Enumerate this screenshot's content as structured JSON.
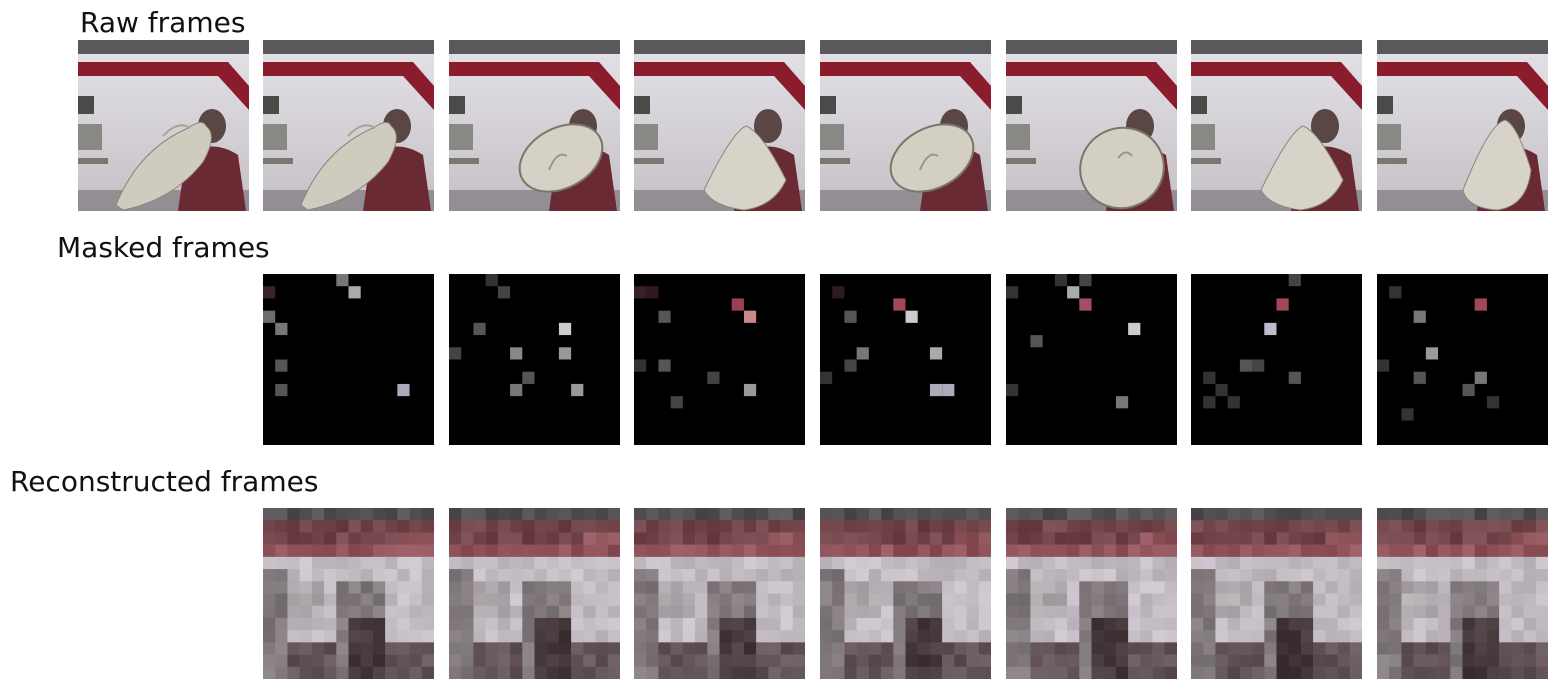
{
  "figure": {
    "rows": [
      {
        "id": "raw",
        "title": "Raw frames",
        "frame_count": 8
      },
      {
        "id": "masked",
        "title": "Masked frames",
        "frame_count": 7
      },
      {
        "id": "recon",
        "title": "Reconstructed frames",
        "frame_count": 7
      }
    ],
    "raw_frames": [
      {
        "hat_shape": "tilted-side",
        "hat_color": "#cfcbbf"
      },
      {
        "hat_shape": "tilted-side",
        "hat_color": "#cfcbbf"
      },
      {
        "hat_shape": "tilted-disc",
        "hat_color": "#d6d1c6"
      },
      {
        "hat_shape": "cone-front",
        "hat_color": "#d8d3c8"
      },
      {
        "hat_shape": "tilted-disc",
        "hat_color": "#d4cfc3"
      },
      {
        "hat_shape": "disc-front",
        "hat_color": "#d4cfc3"
      },
      {
        "hat_shape": "cone-front",
        "hat_color": "#d8d3c8"
      },
      {
        "hat_shape": "cone-right",
        "hat_color": "#d8d3c8"
      }
    ],
    "masked_frames": [
      {
        "visible_patches": [
          [
            6,
            0,
            "#777"
          ],
          [
            7,
            1,
            "#aaa"
          ],
          [
            0,
            1,
            "#3a2228"
          ],
          [
            0,
            3,
            "#6c6c6c"
          ],
          [
            1,
            4,
            "#777"
          ],
          [
            1,
            7,
            "#555"
          ],
          [
            1,
            9,
            "#555"
          ],
          [
            11,
            9,
            "#aab"
          ]
        ]
      },
      {
        "visible_patches": [
          [
            3,
            0,
            "#333"
          ],
          [
            4,
            1,
            "#444"
          ],
          [
            2,
            4,
            "#555"
          ],
          [
            9,
            4,
            "#ccc"
          ],
          [
            0,
            6,
            "#444"
          ],
          [
            5,
            6,
            "#888"
          ],
          [
            9,
            6,
            "#999"
          ],
          [
            6,
            8,
            "#555"
          ],
          [
            5,
            9,
            "#777"
          ],
          [
            10,
            9,
            "#999"
          ]
        ]
      },
      {
        "visible_patches": [
          [
            0,
            1,
            "#3a2025"
          ],
          [
            1,
            1,
            "#301a1f"
          ],
          [
            8,
            2,
            "#9a4050"
          ],
          [
            2,
            3,
            "#555"
          ],
          [
            9,
            3,
            "#c88"
          ],
          [
            0,
            7,
            "#333"
          ],
          [
            2,
            7,
            "#555"
          ],
          [
            6,
            8,
            "#444"
          ],
          [
            9,
            9,
            "#999"
          ],
          [
            3,
            10,
            "#444"
          ]
        ]
      },
      {
        "visible_patches": [
          [
            1,
            1,
            "#2e1a1f"
          ],
          [
            6,
            2,
            "#a04858"
          ],
          [
            2,
            3,
            "#555"
          ],
          [
            7,
            3,
            "#ccc"
          ],
          [
            3,
            6,
            "#777"
          ],
          [
            9,
            6,
            "#aaa"
          ],
          [
            2,
            7,
            "#444"
          ],
          [
            0,
            8,
            "#333"
          ],
          [
            9,
            9,
            "#aab"
          ],
          [
            10,
            9,
            "#aab"
          ]
        ]
      },
      {
        "visible_patches": [
          [
            4,
            0,
            "#333"
          ],
          [
            6,
            0,
            "#444"
          ],
          [
            5,
            1,
            "#aaa"
          ],
          [
            0,
            1,
            "#333"
          ],
          [
            6,
            2,
            "#a05060"
          ],
          [
            10,
            4,
            "#ccc"
          ],
          [
            2,
            5,
            "#555"
          ],
          [
            0,
            9,
            "#333"
          ],
          [
            9,
            10,
            "#777"
          ]
        ]
      },
      {
        "visible_patches": [
          [
            8,
            0,
            "#444"
          ],
          [
            7,
            2,
            "#a04858"
          ],
          [
            6,
            4,
            "#bbc"
          ],
          [
            5,
            7,
            "#444"
          ],
          [
            4,
            7,
            "#555"
          ],
          [
            1,
            8,
            "#333"
          ],
          [
            2,
            9,
            "#333"
          ],
          [
            1,
            10,
            "#333"
          ],
          [
            3,
            10,
            "#333"
          ],
          [
            8,
            8,
            "#555"
          ]
        ]
      },
      {
        "visible_patches": [
          [
            1,
            1,
            "#333"
          ],
          [
            8,
            2,
            "#a04858"
          ],
          [
            3,
            3,
            "#777"
          ],
          [
            4,
            6,
            "#999"
          ],
          [
            0,
            7,
            "#333"
          ],
          [
            3,
            8,
            "#555"
          ],
          [
            8,
            8,
            "#777"
          ],
          [
            7,
            9,
            "#555"
          ],
          [
            2,
            11,
            "#333"
          ],
          [
            9,
            10,
            "#333"
          ]
        ]
      }
    ],
    "recon_frames": [
      {
        "palette": [
          "#4a4548",
          "#6a3a40",
          "#8a4a52",
          "#c0b8c0",
          "#aaa3a8",
          "#7a7275",
          "#5a4a4f",
          "#3a2d30"
        ]
      },
      {
        "palette": [
          "#4a4548",
          "#6a3a40",
          "#8a4a52",
          "#c0b8c0",
          "#aaa3a8",
          "#7a7275",
          "#5a4a4f",
          "#3a2d30"
        ]
      },
      {
        "palette": [
          "#4a4548",
          "#6a3a40",
          "#8a4a52",
          "#c0b8c0",
          "#aaa3a8",
          "#7a7275",
          "#5a4a4f",
          "#3a2d30"
        ]
      },
      {
        "palette": [
          "#4a4548",
          "#6a3a40",
          "#8a4a52",
          "#c0b8c0",
          "#aaa3a8",
          "#7a7275",
          "#5a4a4f",
          "#3a2d30"
        ]
      },
      {
        "palette": [
          "#4a4548",
          "#6a3a40",
          "#8a4a52",
          "#c0b8c0",
          "#aaa3a8",
          "#7a7275",
          "#5a4a4f",
          "#3a2d30"
        ]
      },
      {
        "palette": [
          "#4a4548",
          "#6a3a40",
          "#8a4a52",
          "#c0b8c0",
          "#aaa3a8",
          "#7a7275",
          "#5a4a4f",
          "#3a2d30"
        ]
      },
      {
        "palette": [
          "#4a4548",
          "#6a3a40",
          "#8a4a52",
          "#c0b8c0",
          "#aaa3a8",
          "#7a7275",
          "#5a4a4f",
          "#3a2d30"
        ]
      }
    ],
    "colors": {
      "wall": "#d8d6dc",
      "stripe": "#8a1c2c",
      "ceiling": "#5a585c",
      "floor": "#6a6468",
      "person_shirt": "#6a2a33",
      "person_hair": "#5a4642",
      "mask_background": "#000000"
    }
  }
}
